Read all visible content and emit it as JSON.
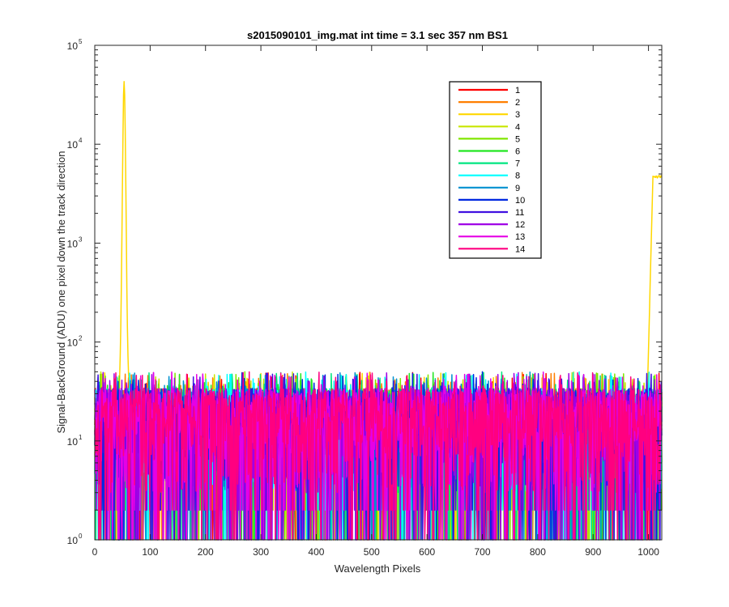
{
  "chart_data": {
    "type": "line",
    "title": "s2015090101_img.mat int time = 3.1 sec  357 nm BS1",
    "xlabel": "Wavelength Pixels",
    "ylabel": "Signal-BackGround (ADU) one pixel down the track direction",
    "xlim": [
      0,
      1024
    ],
    "ylim": [
      1,
      100000
    ],
    "yscale": "log",
    "grid": false,
    "legend_position": "top-right",
    "x_ticks": [
      "0",
      "100",
      "200",
      "300",
      "400",
      "500",
      "600",
      "700",
      "800",
      "900",
      "1000"
    ],
    "y_ticks": [
      {
        "base": "10",
        "exp": "0"
      },
      {
        "base": "10",
        "exp": "1"
      },
      {
        "base": "10",
        "exp": "2"
      },
      {
        "base": "10",
        "exp": "3"
      },
      {
        "base": "10",
        "exp": "4"
      },
      {
        "base": "10",
        "exp": "5"
      }
    ],
    "noise_range": [
      1,
      50
    ],
    "series": [
      {
        "name": "1",
        "color": "#ff0000"
      },
      {
        "name": "2",
        "color": "#ff7f00"
      },
      {
        "name": "3",
        "color": "#ffd700",
        "features": [
          {
            "kind": "peak",
            "x_start": 45,
            "x_peak": 53,
            "x_end": 62,
            "y": 43000
          },
          {
            "kind": "plateau",
            "x_start": 998,
            "x_rise": 1008,
            "x_end": 1024,
            "y": 4700
          }
        ]
      },
      {
        "name": "4",
        "color": "#c8e600"
      },
      {
        "name": "5",
        "color": "#80e600"
      },
      {
        "name": "6",
        "color": "#22e622"
      },
      {
        "name": "7",
        "color": "#00e680"
      },
      {
        "name": "8",
        "color": "#00ffff"
      },
      {
        "name": "9",
        "color": "#0090d0"
      },
      {
        "name": "10",
        "color": "#0028e0"
      },
      {
        "name": "11",
        "color": "#4010e0"
      },
      {
        "name": "12",
        "color": "#a000e6"
      },
      {
        "name": "13",
        "color": "#e600e6"
      },
      {
        "name": "14",
        "color": "#ff0080"
      }
    ]
  }
}
